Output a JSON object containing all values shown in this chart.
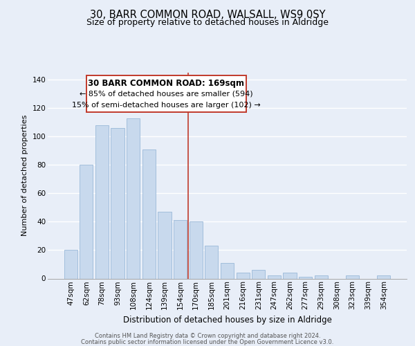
{
  "title": "30, BARR COMMON ROAD, WALSALL, WS9 0SY",
  "subtitle": "Size of property relative to detached houses in Aldridge",
  "xlabel": "Distribution of detached houses by size in Aldridge",
  "ylabel": "Number of detached properties",
  "bar_labels": [
    "47sqm",
    "62sqm",
    "78sqm",
    "93sqm",
    "108sqm",
    "124sqm",
    "139sqm",
    "154sqm",
    "170sqm",
    "185sqm",
    "201sqm",
    "216sqm",
    "231sqm",
    "247sqm",
    "262sqm",
    "277sqm",
    "293sqm",
    "308sqm",
    "323sqm",
    "339sqm",
    "354sqm"
  ],
  "bar_values": [
    20,
    80,
    108,
    106,
    113,
    91,
    47,
    41,
    40,
    23,
    11,
    4,
    6,
    2,
    4,
    1,
    2,
    0,
    2,
    0,
    2
  ],
  "bar_color": "#c8d9ed",
  "bar_edge_color": "#9ab8d8",
  "vline_x": 7.5,
  "vline_color": "#c0392b",
  "annotation_title": "30 BARR COMMON ROAD: 169sqm",
  "annotation_line1": "← 85% of detached houses are smaller (594)",
  "annotation_line2": "15% of semi-detached houses are larger (102) →",
  "annotation_box_facecolor": "#ffffff",
  "annotation_box_edgecolor": "#c0392b",
  "footer_line1": "Contains HM Land Registry data © Crown copyright and database right 2024.",
  "footer_line2": "Contains public sector information licensed under the Open Government Licence v3.0.",
  "ylim": [
    0,
    145
  ],
  "bg_color": "#e8eef8",
  "plot_bg_color": "#e8eef8",
  "grid_color": "#ffffff",
  "title_fontsize": 10.5,
  "subtitle_fontsize": 9,
  "ylabel_fontsize": 8,
  "xlabel_fontsize": 8.5,
  "tick_fontsize": 7.5,
  "footer_fontsize": 6
}
